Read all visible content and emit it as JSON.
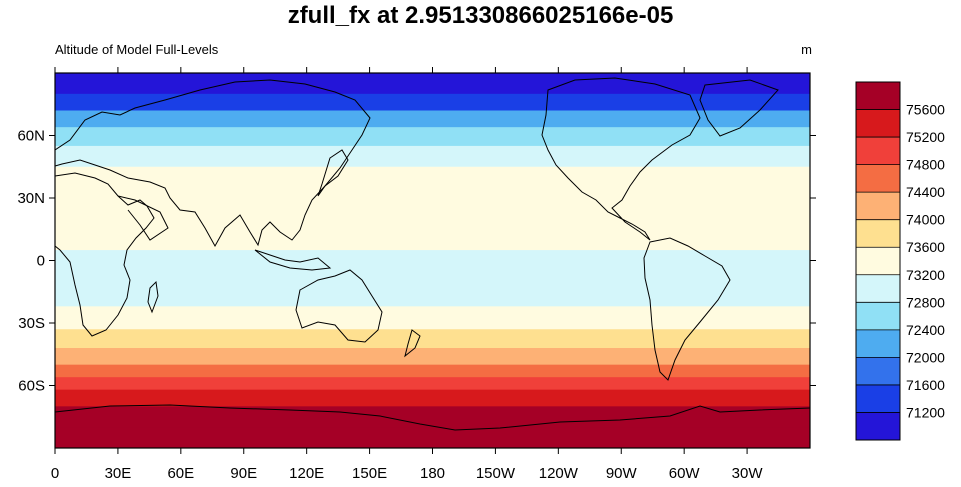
{
  "chart_data": {
    "type": "heatmap",
    "title": "zfull_fx at 2.951330866025166e-05",
    "subtitle_left": "Altitude of Model Full-Levels",
    "units": "m",
    "xlabel": "",
    "ylabel": "",
    "x_ticks": [
      "0",
      "30E",
      "60E",
      "90E",
      "120E",
      "150E",
      "180",
      "150W",
      "120W",
      "90W",
      "60W",
      "30W"
    ],
    "y_ticks": [
      "60N",
      "30N",
      "0",
      "30S",
      "60S"
    ],
    "xlim": [
      0,
      360
    ],
    "ylim": [
      -90,
      90
    ],
    "colorbar_levels": [
      75600,
      75200,
      74800,
      74400,
      74000,
      73600,
      73200,
      72800,
      72400,
      72000,
      71600,
      71200
    ],
    "colorbar_colors": [
      "#a50026",
      "#d7191c",
      "#f0403a",
      "#f46d43",
      "#fdb175",
      "#fee090",
      "#fffbe0",
      "#d4f6fa",
      "#90e0f5",
      "#4eacf0",
      "#3372ec",
      "#1a3fe6",
      "#2415d8"
    ],
    "zonal_bands": [
      {
        "lat": 90,
        "value": 71000
      },
      {
        "lat": 80,
        "value": 71300
      },
      {
        "lat": 72,
        "value": 71800
      },
      {
        "lat": 64,
        "value": 72200
      },
      {
        "lat": 55,
        "value": 72700
      },
      {
        "lat": 45,
        "value": 73100
      },
      {
        "lat": 35,
        "value": 73500
      },
      {
        "lat": 20,
        "value": 73400
      },
      {
        "lat": 5,
        "value": 73300
      },
      {
        "lat": -10,
        "value": 73000
      },
      {
        "lat": -22,
        "value": 73200
      },
      {
        "lat": -33,
        "value": 73500
      },
      {
        "lat": -42,
        "value": 74000
      },
      {
        "lat": -50,
        "value": 74400
      },
      {
        "lat": -56,
        "value": 74800
      },
      {
        "lat": -62,
        "value": 75200
      },
      {
        "lat": -70,
        "value": 75500
      },
      {
        "lat": -80,
        "value": 75800
      },
      {
        "lat": -90,
        "value": 75900
      }
    ],
    "grid": false,
    "legend": "right"
  }
}
